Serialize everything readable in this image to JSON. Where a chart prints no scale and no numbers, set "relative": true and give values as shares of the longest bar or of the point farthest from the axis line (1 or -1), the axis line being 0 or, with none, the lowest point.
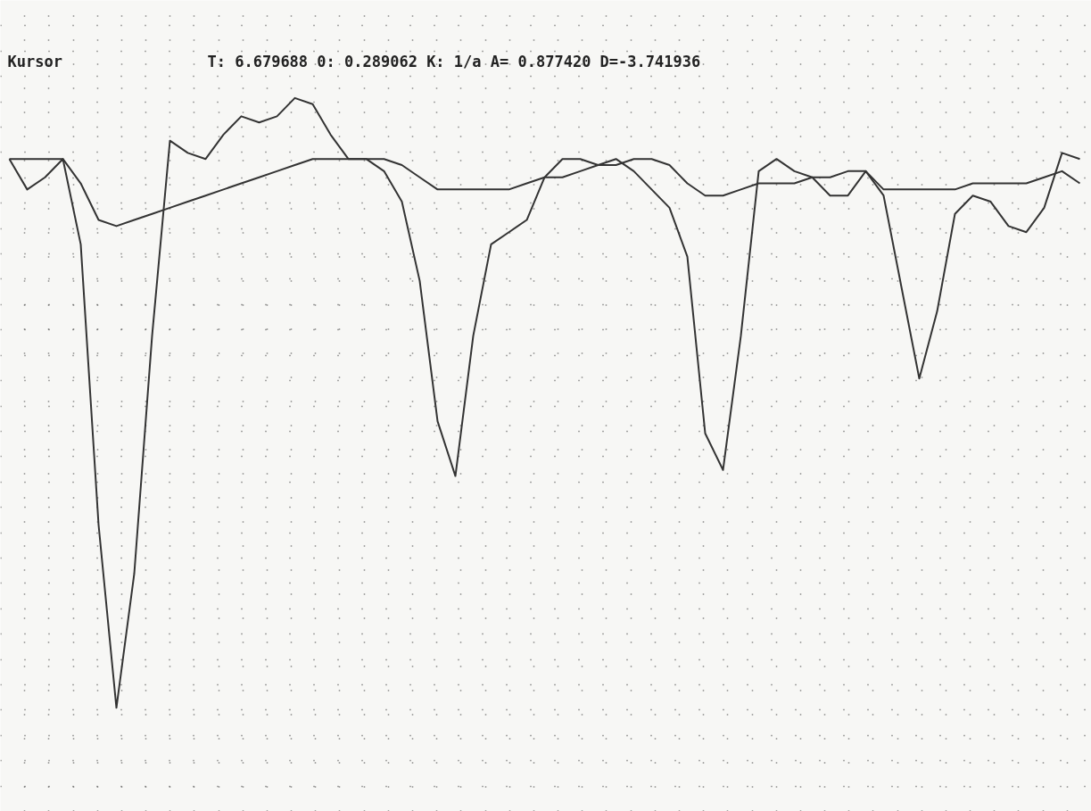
{
  "chart_data": {
    "type": "line",
    "relative": true,
    "grid": true,
    "line_style": "solid",
    "annotations": [
      "Kursor",
      "T: 6.679688 0: 0.289062 K: 1/a A= 0.877420 D=-3.741936"
    ],
    "categories": [
      null,
      null,
      null,
      null,
      null,
      null,
      null,
      null,
      null,
      null,
      null,
      null,
      null,
      null,
      null,
      null,
      null,
      null,
      null,
      null,
      null,
      null,
      null,
      null,
      null,
      null,
      null,
      null,
      null,
      null,
      null,
      null,
      null,
      null,
      null,
      null,
      null,
      null,
      null,
      null,
      null,
      null,
      null,
      null,
      null,
      null,
      null,
      null,
      null,
      null,
      null,
      null,
      null,
      null,
      null,
      null,
      null,
      null,
      null,
      null,
      null
    ],
    "series": [
      {
        "color": "#333333",
        "values": [
          0.9,
          0.85,
          0.87,
          0.9,
          0.76,
          0.3,
          0.0,
          0.22,
          0.61,
          0.93,
          0.91,
          0.9,
          0.94,
          0.97,
          0.96,
          0.97,
          1.0,
          0.99,
          0.94,
          0.9,
          0.9,
          0.88,
          0.83,
          0.7,
          0.47,
          0.38,
          0.61,
          0.76,
          0.78,
          0.8,
          0.87,
          0.9,
          0.9,
          0.89,
          0.9,
          0.88,
          0.85,
          0.82,
          0.74,
          0.45,
          0.39,
          0.61,
          0.88,
          0.9,
          0.88,
          0.87,
          0.84,
          0.84,
          0.88,
          0.84,
          0.69,
          0.54,
          0.65,
          0.81,
          0.84,
          0.83,
          0.79,
          0.78,
          0.82,
          0.91,
          0.9
        ]
      },
      {
        "color": "#333333",
        "values": [
          0.9,
          0.9,
          0.9,
          0.9,
          0.86,
          0.8,
          0.79,
          0.8,
          0.81,
          0.82,
          0.83,
          0.84,
          0.85,
          0.86,
          0.87,
          0.88,
          0.89,
          0.9,
          0.9,
          0.9,
          0.9,
          0.9,
          0.89,
          0.87,
          0.85,
          0.85,
          0.85,
          0.85,
          0.85,
          0.86,
          0.87,
          0.87,
          0.88,
          0.89,
          0.89,
          0.9,
          0.9,
          0.89,
          0.86,
          0.84,
          0.84,
          0.85,
          0.86,
          0.86,
          0.86,
          0.87,
          0.87,
          0.88,
          0.88,
          0.85,
          0.85,
          0.85,
          0.85,
          0.85,
          0.86,
          0.86,
          0.86,
          0.86,
          0.87,
          0.88,
          0.86
        ]
      }
    ]
  }
}
